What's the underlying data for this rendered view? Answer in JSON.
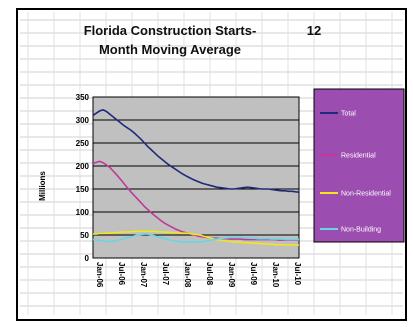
{
  "chart_data": {
    "type": "line",
    "title_line1": "Florida Construction Starts-",
    "title_number": "12",
    "title_line2": "Month Moving Average",
    "ylabel": "Millions",
    "ylim": [
      0,
      350
    ],
    "yticks": [
      "350",
      "300",
      "250",
      "200",
      "150",
      "100",
      "50",
      "0"
    ],
    "grid": true,
    "legend_position": "right",
    "colors": {
      "Total": "#1f2a7a",
      "Residential": "#c0399a",
      "Non-Residential": "#f2e51a",
      "Non-Building": "#66d6e6",
      "plot_background": "#c0c0c0",
      "legend_background": "#9b4db0"
    },
    "x": [
      0,
      1,
      2,
      3,
      4,
      5,
      6,
      7,
      8,
      9,
      10,
      11,
      12,
      13,
      14,
      15,
      16,
      17,
      18,
      19,
      20,
      21,
      22,
      23,
      24,
      25,
      26,
      27,
      28,
      29,
      30,
      31,
      32,
      33,
      34,
      35,
      36,
      37,
      38,
      39,
      40,
      41,
      42,
      43,
      44,
      45,
      46,
      47,
      48,
      49,
      50,
      51,
      52,
      53,
      54,
      55,
      56,
      57,
      58,
      59,
      60
    ],
    "xtick_labels": [
      "Jan-06",
      "Jul-06",
      "Jan-07",
      "Jul-07",
      "Jan-08",
      "Jul-08",
      "Jan-09",
      "Jul-09",
      "Jan-10",
      "Jul-10"
    ],
    "series": [
      {
        "name": "Total",
        "values": [
          310,
          315,
          320,
          322,
          318,
          312,
          306,
          300,
          294,
          288,
          283,
          278,
          272,
          265,
          258,
          250,
          242,
          235,
          228,
          221,
          215,
          209,
          203,
          198,
          193,
          188,
          183,
          179,
          175,
          171,
          168,
          165,
          162,
          160,
          158,
          156,
          154,
          153,
          152,
          151,
          150,
          150,
          151,
          152,
          153,
          154,
          153,
          152,
          151,
          150,
          150,
          150,
          149,
          148,
          147,
          146,
          146,
          145,
          145,
          144,
          143
        ]
      },
      {
        "name": "Residential",
        "values": [
          205,
          208,
          210,
          207,
          202,
          196,
          188,
          180,
          171,
          162,
          153,
          144,
          136,
          128,
          120,
          112,
          105,
          98,
          92,
          86,
          80,
          75,
          71,
          67,
          63,
          60,
          57,
          55,
          53,
          51,
          49,
          47,
          46,
          45,
          44,
          43,
          43,
          42,
          42,
          42,
          41,
          41,
          41,
          41,
          40,
          40,
          40,
          40,
          40,
          40,
          40,
          40,
          40,
          40,
          39,
          39,
          39,
          39,
          39,
          39,
          39
        ]
      },
      {
        "name": "Non-Residential",
        "values": [
          52,
          52,
          53,
          53,
          54,
          54,
          55,
          55,
          56,
          56,
          57,
          57,
          58,
          58,
          58,
          58,
          58,
          58,
          58,
          57,
          57,
          56,
          56,
          55,
          55,
          55,
          54,
          54,
          53,
          52,
          51,
          50,
          48,
          46,
          44,
          42,
          40,
          39,
          38,
          37,
          36,
          35,
          35,
          34,
          34,
          33,
          33,
          32,
          32,
          31,
          31,
          30,
          30,
          29,
          29,
          29,
          28,
          28,
          28,
          28,
          28
        ]
      },
      {
        "name": "Non-Building",
        "values": [
          40,
          39,
          38,
          37,
          36,
          36,
          37,
          38,
          40,
          42,
          44,
          46,
          48,
          50,
          51,
          52,
          52,
          50,
          48,
          46,
          44,
          42,
          40,
          38,
          37,
          36,
          35,
          35,
          35,
          35,
          35,
          35,
          36,
          37,
          38,
          40,
          41,
          42,
          43,
          44,
          45,
          45,
          45,
          45,
          44,
          44,
          43,
          43,
          42,
          42,
          42,
          42,
          41,
          41,
          41,
          41,
          40,
          40,
          40,
          40,
          40
        ]
      }
    ]
  }
}
